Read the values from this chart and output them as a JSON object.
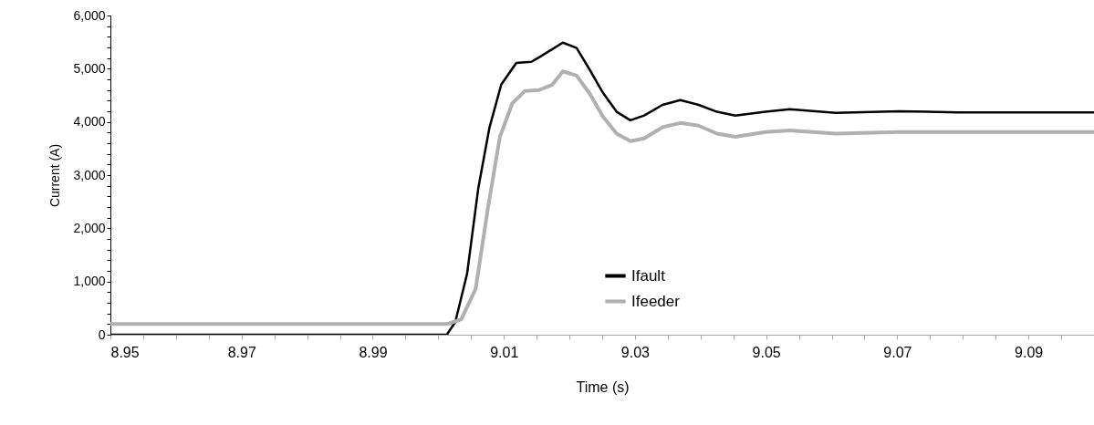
{
  "chart_data": {
    "type": "line",
    "xlabel": "Time (s)",
    "ylabel": "Current (A)",
    "xlim": [
      8.95,
      9.1
    ],
    "ylim": [
      0,
      6000
    ],
    "xticks": [
      8.95,
      {
        "value": 8.955,
        "label": null
      },
      {
        "value": 8.96,
        "label": null
      },
      {
        "value": 8.965,
        "label": null
      },
      8.97,
      {
        "value": 8.975,
        "label": null
      },
      {
        "value": 8.98,
        "label": null
      },
      {
        "value": 8.985,
        "label": null
      },
      8.99,
      {
        "value": 8.995,
        "label": null
      },
      {
        "value": 9.0,
        "label": null
      },
      {
        "value": 9.005,
        "label": null
      },
      9.01,
      {
        "value": 9.015,
        "label": null
      },
      {
        "value": 9.02,
        "label": null
      },
      {
        "value": 9.025,
        "label": null
      },
      9.03,
      {
        "value": 9.035,
        "label": null
      },
      {
        "value": 9.04,
        "label": null
      },
      {
        "value": 9.045,
        "label": null
      },
      9.05,
      {
        "value": 9.055,
        "label": null
      },
      {
        "value": 9.06,
        "label": null
      },
      {
        "value": 9.065,
        "label": null
      },
      9.07,
      {
        "value": 9.075,
        "label": null
      },
      {
        "value": 9.08,
        "label": null
      },
      {
        "value": 9.085,
        "label": null
      },
      9.09,
      {
        "value": 9.095,
        "label": null
      }
    ],
    "yticks": [
      {
        "value": 0,
        "label": "0"
      },
      {
        "value": 200,
        "label": null
      },
      {
        "value": 400,
        "label": null
      },
      {
        "value": 600,
        "label": null
      },
      {
        "value": 800,
        "label": null
      },
      {
        "value": 1000,
        "label": "1,000"
      },
      {
        "value": 1200,
        "label": null
      },
      {
        "value": 1400,
        "label": null
      },
      {
        "value": 1600,
        "label": null
      },
      {
        "value": 1800,
        "label": null
      },
      {
        "value": 2000,
        "label": "2,000"
      },
      {
        "value": 2200,
        "label": null
      },
      {
        "value": 2400,
        "label": null
      },
      {
        "value": 2600,
        "label": null
      },
      {
        "value": 2800,
        "label": null
      },
      {
        "value": 3000,
        "label": "3,000"
      },
      {
        "value": 3200,
        "label": null
      },
      {
        "value": 3400,
        "label": null
      },
      {
        "value": 3600,
        "label": null
      },
      {
        "value": 3800,
        "label": null
      },
      {
        "value": 4000,
        "label": "4,000"
      },
      {
        "value": 4200,
        "label": null
      },
      {
        "value": 4400,
        "label": null
      },
      {
        "value": 4600,
        "label": null
      },
      {
        "value": 4800,
        "label": null
      },
      {
        "value": 5000,
        "label": "5,000"
      },
      {
        "value": 5200,
        "label": null
      },
      {
        "value": 5400,
        "label": null
      },
      {
        "value": 5600,
        "label": null
      },
      {
        "value": 5800,
        "label": null
      },
      {
        "value": 6000,
        "label": "6,000"
      }
    ],
    "grid": false,
    "legend": "center",
    "marker": "none",
    "line_style": "solid",
    "series": [
      {
        "name": "Ifault",
        "color": "#000000",
        "x": [
          8.95,
          9.0013,
          9.0026,
          9.0044,
          9.0061,
          9.0078,
          9.0096,
          9.0119,
          9.0142,
          9.0156,
          9.019,
          9.0211,
          9.0231,
          9.0251,
          9.0272,
          9.0293,
          9.0314,
          9.0342,
          9.0369,
          9.0397,
          9.0425,
          9.0453,
          9.0499,
          9.0536,
          9.0606,
          9.0703,
          9.0794,
          9.1
        ],
        "values": [
          0,
          0,
          240,
          1150,
          2750,
          3890,
          4700,
          5110,
          5130,
          5230,
          5490,
          5390,
          4980,
          4550,
          4190,
          4030,
          4120,
          4320,
          4410,
          4320,
          4190,
          4120,
          4190,
          4240,
          4170,
          4200,
          4180,
          4180
        ]
      },
      {
        "name": "Ifeeder",
        "color": "#b0b0b0",
        "x": [
          8.95,
          9.0013,
          9.0035,
          9.0057,
          9.0076,
          9.0094,
          9.0113,
          9.0132,
          9.0154,
          9.0174,
          9.019,
          9.0211,
          9.0231,
          9.0251,
          9.0272,
          9.0293,
          9.0314,
          9.0342,
          9.0369,
          9.0397,
          9.0425,
          9.0453,
          9.0499,
          9.0536,
          9.0606,
          9.0703,
          9.1
        ],
        "values": [
          200,
          200,
          290,
          860,
          2400,
          3720,
          4350,
          4580,
          4600,
          4700,
          4950,
          4870,
          4530,
          4100,
          3780,
          3640,
          3690,
          3900,
          3980,
          3930,
          3780,
          3720,
          3810,
          3840,
          3780,
          3810,
          3810
        ]
      }
    ]
  }
}
